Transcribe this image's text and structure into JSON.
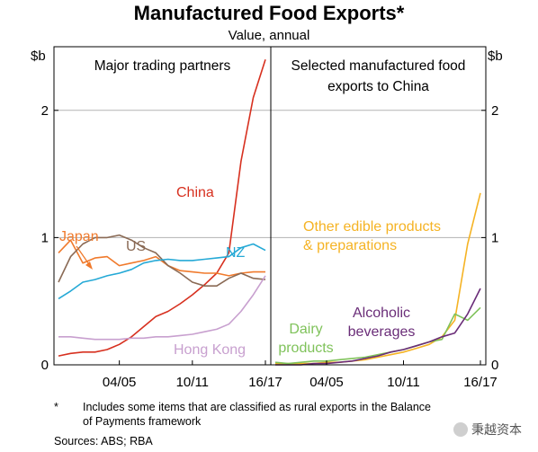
{
  "chart_data": {
    "title": "Manufactured Food Exports*",
    "subtitle": "Value, annual",
    "type": "line",
    "unit_left": "$b",
    "unit_right": "$b",
    "y_ticks": [
      "0",
      "1",
      "2"
    ],
    "ylim": [
      0,
      2.5
    ],
    "grid": true,
    "x_tick_labels": [
      "04/05",
      "10/11",
      "16/17"
    ],
    "panels": [
      {
        "title_lines": [
          "Major trading partners"
        ],
        "x": [
          "1999/00",
          "2000/01",
          "2001/02",
          "2002/03",
          "2003/04",
          "2004/05",
          "2005/06",
          "2006/07",
          "2007/08",
          "2008/09",
          "2009/10",
          "2010/11",
          "2011/12",
          "2012/13",
          "2013/14",
          "2014/15",
          "2015/16",
          "2016/17"
        ],
        "series": [
          {
            "name": "China",
            "color": "#d7301f",
            "values": [
              0.07,
              0.09,
              0.1,
              0.1,
              0.12,
              0.16,
              0.22,
              0.3,
              0.38,
              0.42,
              0.48,
              0.55,
              0.63,
              0.72,
              0.88,
              1.6,
              2.1,
              2.4
            ]
          },
          {
            "name": "Japan",
            "color": "#f07a2c",
            "values": [
              0.88,
              0.98,
              0.8,
              0.84,
              0.85,
              0.78,
              0.8,
              0.82,
              0.85,
              0.78,
              0.74,
              0.73,
              0.72,
              0.72,
              0.7,
              0.72,
              0.73,
              0.73
            ]
          },
          {
            "name": "US",
            "color": "#8a6a55",
            "values": [
              0.65,
              0.85,
              0.95,
              1.0,
              1.0,
              1.02,
              0.98,
              0.92,
              0.88,
              0.78,
              0.72,
              0.65,
              0.62,
              0.62,
              0.68,
              0.72,
              0.68,
              0.67
            ]
          },
          {
            "name": "NZ",
            "color": "#25a9d6",
            "values": [
              0.52,
              0.58,
              0.65,
              0.67,
              0.7,
              0.72,
              0.75,
              0.8,
              0.82,
              0.83,
              0.82,
              0.82,
              0.83,
              0.84,
              0.85,
              0.92,
              0.95,
              0.9
            ]
          },
          {
            "name": "Hong Kong",
            "color": "#c8a0cf",
            "values": [
              0.22,
              0.22,
              0.21,
              0.2,
              0.2,
              0.2,
              0.21,
              0.21,
              0.22,
              0.22,
              0.23,
              0.24,
              0.26,
              0.28,
              0.32,
              0.42,
              0.55,
              0.7
            ]
          }
        ]
      },
      {
        "title_lines": [
          "Selected manufactured food",
          "exports to China"
        ],
        "x": [
          "2000/01",
          "2001/02",
          "2002/03",
          "2003/04",
          "2004/05",
          "2005/06",
          "2006/07",
          "2007/08",
          "2008/09",
          "2009/10",
          "2010/11",
          "2011/12",
          "2012/13",
          "2013/14",
          "2014/15",
          "2015/16",
          "2016/17"
        ],
        "series": [
          {
            "name": "Other edible products & preparations",
            "color": "#f5b324",
            "values": [
              0.01,
              0.01,
              0.01,
              0.01,
              0.02,
              0.02,
              0.03,
              0.04,
              0.06,
              0.08,
              0.1,
              0.13,
              0.16,
              0.22,
              0.35,
              0.95,
              1.35
            ]
          },
          {
            "name": "Dairy products",
            "color": "#7fc25a",
            "values": [
              0.02,
              0.01,
              0.02,
              0.03,
              0.03,
              0.04,
              0.05,
              0.06,
              0.08,
              0.1,
              0.12,
              0.15,
              0.18,
              0.2,
              0.4,
              0.35,
              0.45
            ]
          },
          {
            "name": "Alcoholic beverages",
            "color": "#6a2d78",
            "values": [
              0.0,
              0.0,
              0.0,
              0.01,
              0.01,
              0.02,
              0.03,
              0.05,
              0.07,
              0.1,
              0.12,
              0.15,
              0.18,
              0.22,
              0.25,
              0.4,
              0.6
            ]
          }
        ]
      }
    ]
  },
  "notes": {
    "asterisk": "*",
    "footnote_line1": "Includes some items that are classified as rural exports in the Balance",
    "footnote_line2": "of Payments framework",
    "sources": "Sources:   ABS; RBA"
  },
  "watermark": {
    "text": "秉越资本"
  }
}
